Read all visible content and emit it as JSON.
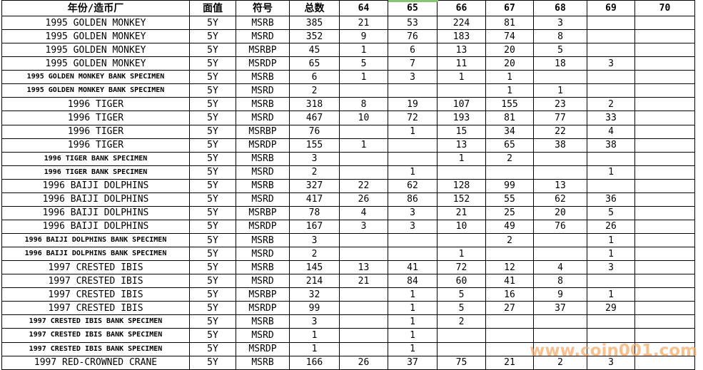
{
  "table": {
    "columns": [
      "年份/造币厂",
      "面值",
      "符号",
      "总数",
      "64",
      "65",
      "66",
      "67",
      "68",
      "69",
      "70"
    ],
    "rows": [
      {
        "name": "1995 GOLDEN MONKEY",
        "specimen": false,
        "denomination": "5Y",
        "symbol": "MSRB",
        "total": "385",
        "grades": [
          "21",
          "53",
          "224",
          "81",
          "3",
          "",
          ""
        ]
      },
      {
        "name": "1995 GOLDEN MONKEY",
        "specimen": false,
        "denomination": "5Y",
        "symbol": "MSRD",
        "total": "352",
        "grades": [
          "9",
          "76",
          "183",
          "74",
          "8",
          "",
          ""
        ]
      },
      {
        "name": "1995 GOLDEN MONKEY",
        "specimen": false,
        "denomination": "5Y",
        "symbol": "MSRBP",
        "total": "45",
        "grades": [
          "1",
          "6",
          "13",
          "20",
          "5",
          "",
          ""
        ]
      },
      {
        "name": "1995 GOLDEN MONKEY",
        "specimen": false,
        "denomination": "5Y",
        "symbol": "MSRDP",
        "total": "65",
        "grades": [
          "5",
          "7",
          "11",
          "20",
          "18",
          "3",
          ""
        ]
      },
      {
        "name": "1995 GOLDEN MONKEY BANK SPECIMEN",
        "specimen": true,
        "denomination": "5Y",
        "symbol": "MSRB",
        "total": "6",
        "grades": [
          "1",
          "3",
          "1",
          "1",
          "",
          "",
          ""
        ]
      },
      {
        "name": "1995 GOLDEN MONKEY BANK SPECIMEN",
        "specimen": true,
        "denomination": "5Y",
        "symbol": "MSRD",
        "total": "2",
        "grades": [
          "",
          "",
          "",
          "1",
          "1",
          "",
          ""
        ]
      },
      {
        "name": "1996 TIGER",
        "specimen": false,
        "denomination": "5Y",
        "symbol": "MSRB",
        "total": "318",
        "grades": [
          "8",
          "19",
          "107",
          "155",
          "23",
          "2",
          ""
        ]
      },
      {
        "name": "1996 TIGER",
        "specimen": false,
        "denomination": "5Y",
        "symbol": "MSRD",
        "total": "467",
        "grades": [
          "10",
          "72",
          "193",
          "81",
          "77",
          "33",
          ""
        ]
      },
      {
        "name": "1996 TIGER",
        "specimen": false,
        "denomination": "5Y",
        "symbol": "MSRBP",
        "total": "76",
        "grades": [
          "",
          "1",
          "15",
          "34",
          "22",
          "4",
          ""
        ]
      },
      {
        "name": "1996 TIGER",
        "specimen": false,
        "denomination": "5Y",
        "symbol": "MSRDP",
        "total": "155",
        "grades": [
          "1",
          "",
          "13",
          "65",
          "38",
          "38",
          ""
        ]
      },
      {
        "name": "1996 TIGER BANK SPECIMEN",
        "specimen": true,
        "denomination": "5Y",
        "symbol": "MSRB",
        "total": "3",
        "grades": [
          "",
          "",
          "1",
          "2",
          "",
          "",
          ""
        ]
      },
      {
        "name": "1996 TIGER BANK SPECIMEN",
        "specimen": true,
        "denomination": "5Y",
        "symbol": "MSRD",
        "total": "2",
        "grades": [
          "",
          "1",
          "",
          "",
          "",
          "1",
          ""
        ]
      },
      {
        "name": "1996 BAIJI DOLPHINS",
        "specimen": false,
        "denomination": "5Y",
        "symbol": "MSRB",
        "total": "327",
        "grades": [
          "22",
          "62",
          "128",
          "99",
          "13",
          "",
          ""
        ]
      },
      {
        "name": "1996 BAIJI DOLPHINS",
        "specimen": false,
        "denomination": "5Y",
        "symbol": "MSRD",
        "total": "417",
        "grades": [
          "26",
          "86",
          "152",
          "55",
          "62",
          "36",
          ""
        ]
      },
      {
        "name": "1996 BAIJI DOLPHINS",
        "specimen": false,
        "denomination": "5Y",
        "symbol": "MSRBP",
        "total": "78",
        "grades": [
          "4",
          "3",
          "21",
          "25",
          "20",
          "5",
          ""
        ]
      },
      {
        "name": "1996 BAIJI DOLPHINS",
        "specimen": false,
        "denomination": "5Y",
        "symbol": "MSRDP",
        "total": "167",
        "grades": [
          "3",
          "3",
          "10",
          "49",
          "76",
          "26",
          ""
        ]
      },
      {
        "name": "1996 BAIJI DOLPHINS BANK SPECIMEN",
        "specimen": true,
        "denomination": "5Y",
        "symbol": "MSRB",
        "total": "3",
        "grades": [
          "",
          "",
          "",
          "2",
          "",
          "1",
          ""
        ]
      },
      {
        "name": "1996 BAIJI DOLPHINS BANK SPECIMEN",
        "specimen": true,
        "denomination": "5Y",
        "symbol": "MSRD",
        "total": "2",
        "grades": [
          "",
          "",
          "1",
          "",
          "",
          "1",
          ""
        ]
      },
      {
        "name": "1997 CRESTED IBIS",
        "specimen": false,
        "denomination": "5Y",
        "symbol": "MSRB",
        "total": "145",
        "grades": [
          "13",
          "41",
          "72",
          "12",
          "4",
          "3",
          ""
        ]
      },
      {
        "name": "1997 CRESTED IBIS",
        "specimen": false,
        "denomination": "5Y",
        "symbol": "MSRD",
        "total": "214",
        "grades": [
          "21",
          "84",
          "60",
          "41",
          "8",
          "",
          ""
        ]
      },
      {
        "name": "1997 CRESTED IBIS",
        "specimen": false,
        "denomination": "5Y",
        "symbol": "MSRBP",
        "total": "32",
        "grades": [
          "",
          "1",
          "5",
          "16",
          "9",
          "1",
          ""
        ]
      },
      {
        "name": "1997 CRESTED IBIS",
        "specimen": false,
        "denomination": "5Y",
        "symbol": "MSRDP",
        "total": "99",
        "grades": [
          "",
          "1",
          "5",
          "27",
          "37",
          "29",
          ""
        ]
      },
      {
        "name": "1997 CRESTED IBIS BANK SPECIMEN",
        "specimen": true,
        "denomination": "5Y",
        "symbol": "MSRB",
        "total": "3",
        "grades": [
          "",
          "1",
          "2",
          "",
          "",
          "",
          ""
        ]
      },
      {
        "name": "1997 CRESTED IBIS BANK SPECIMEN",
        "specimen": true,
        "denomination": "5Y",
        "symbol": "MSRD",
        "total": "1",
        "grades": [
          "",
          "1",
          "",
          "",
          "",
          "",
          ""
        ]
      },
      {
        "name": "1997 CRESTED IBIS BANK SPECIMEN",
        "specimen": true,
        "denomination": "5Y",
        "symbol": "MSRDP",
        "total": "1",
        "grades": [
          "",
          "1",
          "",
          "",
          "",
          "",
          ""
        ]
      },
      {
        "name": "1997 RED-CROWNED CRANE",
        "specimen": false,
        "denomination": "5Y",
        "symbol": "MSRB",
        "total": "166",
        "grades": [
          "26",
          "37",
          "75",
          "21",
          "2",
          "3",
          ""
        ]
      }
    ]
  },
  "selection": {
    "highlighted_column": "65"
  },
  "watermark": "www.coin001.com",
  "colors": {
    "grid_border": "#000000",
    "selection_green": "#8cbf7e",
    "watermark_orange": "#f6a963"
  }
}
